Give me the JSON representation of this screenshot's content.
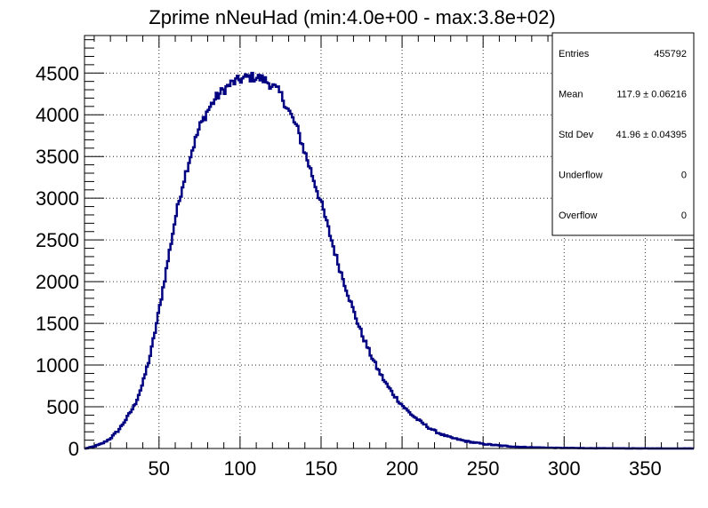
{
  "chart_data": {
    "type": "histogram",
    "title": "Zprime nNeuHad (min:4.0e+00 - max:3.8e+02)",
    "xlabel": "",
    "ylabel": "",
    "xlim": [
      4,
      380
    ],
    "ylim": [
      0,
      4950
    ],
    "x_ticks": [
      50,
      100,
      150,
      200,
      250,
      300,
      350
    ],
    "x_tick_labels": [
      "50",
      "100",
      "150",
      "200",
      "250",
      "300",
      "350"
    ],
    "y_ticks": [
      0,
      500,
      1000,
      1500,
      2000,
      2500,
      3000,
      3500,
      4000,
      4500
    ],
    "y_tick_labels": [
      "0",
      "500",
      "1000",
      "1500",
      "2000",
      "2500",
      "3000",
      "3500",
      "4000",
      "4500"
    ],
    "grid": true,
    "line_color": "#000080",
    "series": [
      {
        "x": [
          5,
          10,
          15,
          20,
          25,
          30,
          35,
          40,
          45,
          50,
          55,
          60,
          65,
          70,
          75,
          80,
          85,
          90,
          95,
          100,
          105,
          110,
          115,
          120,
          125,
          130,
          135,
          140,
          145,
          150,
          155,
          160,
          165,
          170,
          175,
          180,
          185,
          190,
          195,
          200,
          205,
          210,
          215,
          220,
          225,
          230,
          240,
          250,
          260,
          270,
          280,
          290,
          300,
          320,
          340,
          360,
          378
        ],
        "values": [
          0,
          25,
          60,
          120,
          220,
          360,
          520,
          780,
          1150,
          1650,
          2200,
          2750,
          3200,
          3550,
          3850,
          4050,
          4200,
          4300,
          4380,
          4420,
          4450,
          4450,
          4420,
          4350,
          4250,
          4050,
          3850,
          3550,
          3250,
          2950,
          2600,
          2250,
          1950,
          1650,
          1380,
          1150,
          950,
          780,
          640,
          520,
          420,
          340,
          270,
          210,
          165,
          130,
          85,
          55,
          35,
          22,
          14,
          9,
          6,
          3,
          1,
          0,
          0
        ]
      }
    ]
  },
  "stats": {
    "rows": [
      {
        "label": "Entries",
        "value": "455792"
      },
      {
        "label": "Mean",
        "value": "117.9 ± 0.06216"
      },
      {
        "label": "Std Dev",
        "value": "41.96 ± 0.04395"
      },
      {
        "label": "Underflow",
        "value": "0"
      },
      {
        "label": "Overflow",
        "value": "0"
      }
    ]
  }
}
